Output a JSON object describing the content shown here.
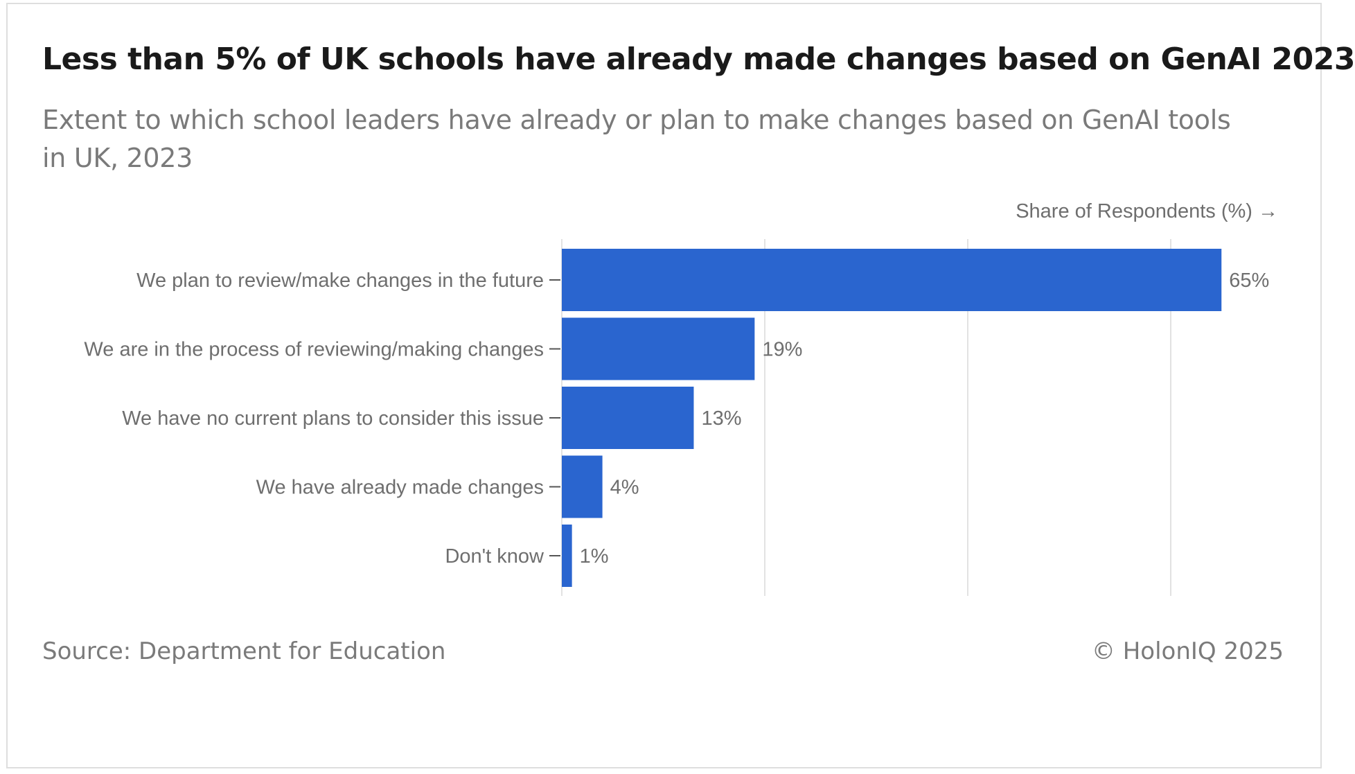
{
  "chart_data": {
    "type": "bar",
    "orientation": "horizontal",
    "title": "Less than 5% of UK schools have already made changes based on GenAI 2023",
    "subtitle": "Extent to which school leaders have already or plan to make changes based on GenAI tools in UK, 2023",
    "xlabel": "Share of Respondents (%) →",
    "ylabel": "",
    "categories": [
      "We plan to review/make changes in the future",
      "We are in the process of reviewing/making changes",
      "We have no current plans to consider this issue",
      "We have already made changes",
      "Don't know"
    ],
    "values": [
      65,
      19,
      13,
      4,
      1
    ],
    "value_labels": [
      "65%",
      "19%",
      "13%",
      "4%",
      "1%"
    ],
    "xlim": [
      0,
      70
    ],
    "gridlines_at": [
      0,
      20,
      40,
      60
    ],
    "grid": true,
    "bar_color": "#2a65cf",
    "legend": "none"
  },
  "footer": {
    "source": "Source: Department for Education",
    "copyright": "© HolonIQ 2025"
  },
  "colors": {
    "bar": "#2a65cf",
    "grid": "#e2e2e2",
    "axis_text": "#6e6e6e",
    "title": "#1a1a1a",
    "muted": "#7a7a7a"
  }
}
